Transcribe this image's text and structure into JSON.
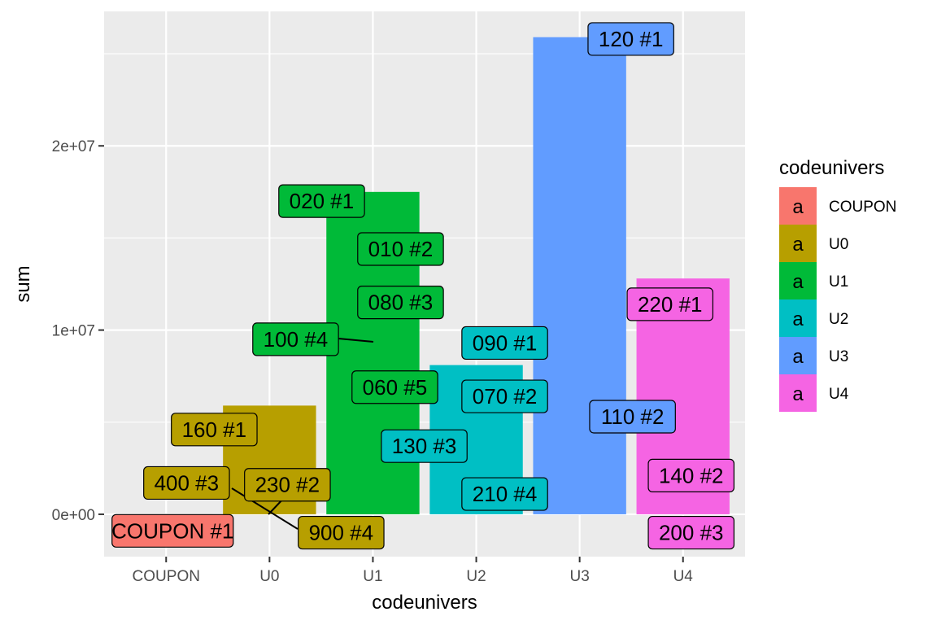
{
  "chart_data": {
    "type": "bar",
    "xlabel": "codeunivers",
    "ylabel": "sum",
    "categories": [
      "COUPON",
      "U0",
      "U1",
      "U2",
      "U3",
      "U4"
    ],
    "values": [
      -900000,
      5900000,
      17500000,
      8100000,
      25900000,
      12800000
    ],
    "colors": [
      "#F8766D",
      "#B79F00",
      "#00BA38",
      "#00BFC4",
      "#619CFF",
      "#F564E3"
    ],
    "ylim": [
      -2300000,
      27300000
    ],
    "yticks": [
      0,
      10000000,
      20000000
    ],
    "ytick_labels": [
      "0e+00",
      "1e+07",
      "2e+07"
    ],
    "grid": true,
    "legend": {
      "title": "codeunivers",
      "position": "right",
      "key_glyph": "a",
      "items": [
        "COUPON",
        "U0",
        "U1",
        "U2",
        "U3",
        "U4"
      ]
    },
    "labels": [
      {
        "text": "COUPON #1",
        "category": "COUPON",
        "value": -900000
      },
      {
        "text": "160 #1",
        "category": "U0",
        "value": 4600000
      },
      {
        "text": "230 #2",
        "category": "U0",
        "value": 1600000
      },
      {
        "text": "400 #3",
        "category": "U0",
        "value": 1700000
      },
      {
        "text": "900 #4",
        "category": "U0",
        "value": -1000000
      },
      {
        "text": "020 #1",
        "category": "U1",
        "value": 17000000
      },
      {
        "text": "010 #2",
        "category": "U1",
        "value": 14400000
      },
      {
        "text": "080 #3",
        "category": "U1",
        "value": 11500000
      },
      {
        "text": "100 #4",
        "category": "U1",
        "value": 9500000
      },
      {
        "text": "060 #5",
        "category": "U1",
        "value": 6900000
      },
      {
        "text": "090 #1",
        "category": "U2",
        "value": 9300000
      },
      {
        "text": "070 #2",
        "category": "U2",
        "value": 6400000
      },
      {
        "text": "130 #3",
        "category": "U2",
        "value": 3700000
      },
      {
        "text": "210 #4",
        "category": "U2",
        "value": 1100000
      },
      {
        "text": "120 #1",
        "category": "U3",
        "value": 25800000
      },
      {
        "text": "110 #2",
        "category": "U3",
        "value": 5300000
      },
      {
        "text": "220 #1",
        "category": "U4",
        "value": 11400000
      },
      {
        "text": "140 #2",
        "category": "U4",
        "value": 2100000
      },
      {
        "text": "200 #3",
        "category": "U4",
        "value": -1000000
      }
    ]
  }
}
